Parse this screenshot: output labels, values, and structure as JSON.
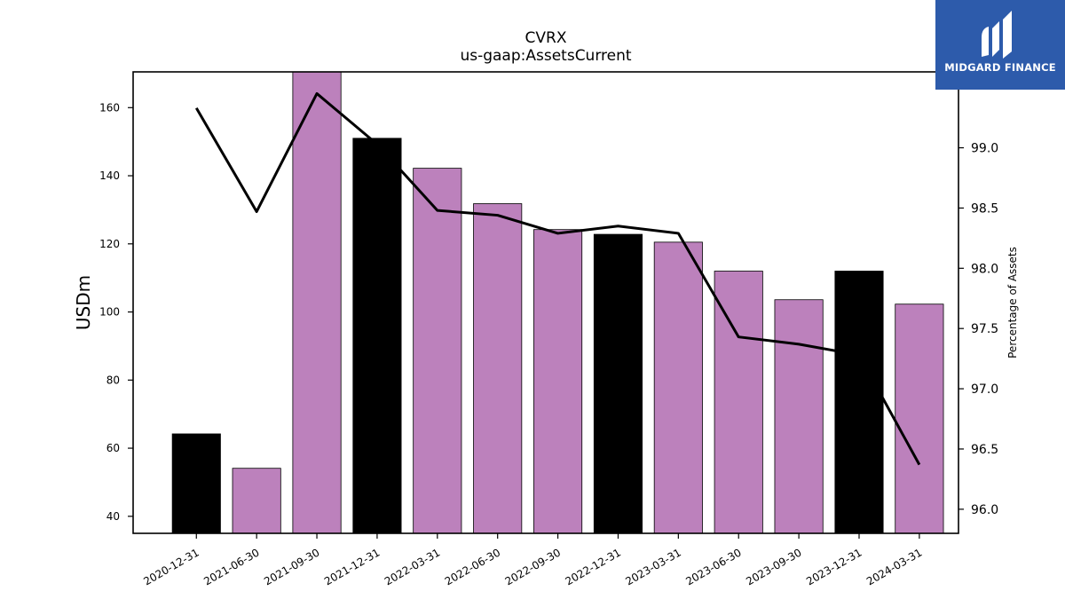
{
  "chart_data": {
    "type": "bar",
    "title": "CVRX",
    "subtitle": "us-gaap:AssetsCurrent",
    "ylabel": "USDm",
    "y2label": "Percentage of Assets",
    "categories": [
      "2020-12-31",
      "2021-06-30",
      "2021-09-30",
      "2021-12-31",
      "2022-03-31",
      "2022-06-30",
      "2022-09-30",
      "2022-12-31",
      "2023-03-31",
      "2023-06-30",
      "2023-09-30",
      "2023-12-31",
      "2024-03-31"
    ],
    "series": [
      {
        "values": [
          64.2,
          54.1,
          170.5,
          151.0,
          142.2,
          131.8,
          124.2,
          122.8,
          120.5,
          112.0,
          103.6,
          112.0,
          102.3
        ],
        "bar_colors": [
          "#000000",
          "#bc81bc",
          "#bc81bc",
          "#000000",
          "#bc81bc",
          "#bc81bc",
          "#bc81bc",
          "#000000",
          "#bc81bc",
          "#bc81bc",
          "#bc81bc",
          "#000000",
          "#bc81bc"
        ]
      },
      {
        "axis": "right",
        "values": [
          99.33,
          98.47,
          99.45,
          99.03,
          98.48,
          98.44,
          98.29,
          98.35,
          98.29,
          97.43,
          97.37,
          97.28,
          96.37
        ],
        "color": "#000000"
      }
    ],
    "ylim": [
      35,
      170.5
    ],
    "y2lim": [
      95.8,
      99.63
    ],
    "yticks": [
      40,
      60,
      80,
      100,
      120,
      140,
      160
    ],
    "y2ticks": [
      "96.0",
      "96.5",
      "97.0",
      "97.5",
      "98.0",
      "98.5",
      "99.0"
    ],
    "grid": false,
    "legend": "none"
  },
  "logo": {
    "text": "MIDGARD FINANCE",
    "background": "#2d5bab"
  }
}
